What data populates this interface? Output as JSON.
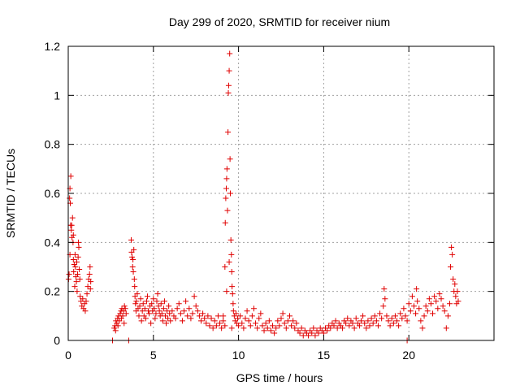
{
  "chart_data": {
    "type": "scatter",
    "title": "Day 299 of 2020, SRMTID for receiver nium",
    "xlabel": "GPS time / hours",
    "ylabel": "SRMTID / TECUs",
    "xlim": [
      0,
      25
    ],
    "ylim": [
      0,
      1.2
    ],
    "x_ticks": [
      0,
      5,
      10,
      15,
      20
    ],
    "x_tick_labels": [
      "0",
      "5",
      "10",
      "15",
      "20"
    ],
    "y_ticks": [
      0,
      0.2,
      0.4,
      0.6,
      0.8,
      1.0,
      1.2
    ],
    "y_tick_labels": [
      "0",
      "0.2",
      "0.4",
      "0.6",
      "0.8",
      "1",
      "1.2"
    ],
    "grid": true,
    "marker": "+",
    "colors": {
      "series": "#e00000",
      "grid": "#a0a0a0",
      "axis": "#000000"
    },
    "series": [
      {
        "name": "SRMTID",
        "points": [
          [
            0.05,
            0.27
          ],
          [
            0.08,
            0.58
          ],
          [
            0.1,
            0.62
          ],
          [
            0.12,
            0.56
          ],
          [
            0.15,
            0.67
          ],
          [
            0.18,
            0.45
          ],
          [
            0.2,
            0.47
          ],
          [
            0.22,
            0.42
          ],
          [
            0.25,
            0.5
          ],
          [
            0.28,
            0.4
          ],
          [
            0.3,
            0.33
          ],
          [
            0.32,
            0.28
          ],
          [
            0.35,
            0.31
          ],
          [
            0.38,
            0.22
          ],
          [
            0.4,
            0.35
          ],
          [
            0.42,
            0.3
          ],
          [
            0.45,
            0.26
          ],
          [
            0.48,
            0.24
          ],
          [
            0.5,
            0.32
          ],
          [
            0.52,
            0.2
          ],
          [
            0.55,
            0.27
          ],
          [
            0.58,
            0.34
          ],
          [
            0.6,
            0.4
          ],
          [
            0.62,
            0.38
          ],
          [
            0.65,
            0.29
          ],
          [
            0.68,
            0.25
          ],
          [
            0.7,
            0.18
          ],
          [
            0.75,
            0.16
          ],
          [
            0.8,
            0.14
          ],
          [
            0.85,
            0.17
          ],
          [
            0.9,
            0.13
          ],
          [
            0.95,
            0.15
          ],
          [
            1.0,
            0.12
          ],
          [
            1.05,
            0.16
          ],
          [
            1.1,
            0.19
          ],
          [
            1.15,
            0.22
          ],
          [
            1.2,
            0.25
          ],
          [
            1.25,
            0.27
          ],
          [
            1.3,
            0.21
          ],
          [
            1.32,
            0.24
          ],
          [
            1.28,
            0.3
          ],
          [
            0.02,
            0.25
          ],
          [
            0.1,
            0.35
          ],
          [
            0.14,
            0.47
          ],
          [
            0.3,
            0.43
          ],
          [
            2.6,
            0.0
          ],
          [
            3.55,
            0.0
          ],
          [
            19.9,
            0.0
          ],
          [
            2.7,
            0.05
          ],
          [
            2.75,
            0.06
          ],
          [
            2.8,
            0.08
          ],
          [
            2.85,
            0.07
          ],
          [
            2.9,
            0.09
          ],
          [
            2.95,
            0.1
          ],
          [
            3.0,
            0.08
          ],
          [
            3.05,
            0.11
          ],
          [
            3.1,
            0.12
          ],
          [
            3.15,
            0.13
          ],
          [
            3.2,
            0.1
          ],
          [
            3.25,
            0.12
          ],
          [
            3.3,
            0.14
          ],
          [
            3.35,
            0.13
          ],
          [
            3.4,
            0.11
          ],
          [
            2.78,
            0.04
          ],
          [
            2.92,
            0.06
          ],
          [
            3.12,
            0.09
          ],
          [
            3.28,
            0.07
          ],
          [
            3.7,
            0.41
          ],
          [
            3.72,
            0.36
          ],
          [
            3.75,
            0.34
          ],
          [
            3.78,
            0.3
          ],
          [
            3.8,
            0.33
          ],
          [
            3.82,
            0.28
          ],
          [
            3.85,
            0.37
          ],
          [
            3.88,
            0.25
          ],
          [
            3.9,
            0.22
          ],
          [
            3.92,
            0.18
          ],
          [
            3.95,
            0.15
          ],
          [
            3.98,
            0.12
          ],
          [
            4.0,
            0.16
          ],
          [
            4.05,
            0.19
          ],
          [
            4.1,
            0.13
          ],
          [
            4.15,
            0.1
          ],
          [
            4.2,
            0.14
          ],
          [
            4.25,
            0.17
          ],
          [
            4.3,
            0.08
          ],
          [
            4.35,
            0.12
          ],
          [
            4.4,
            0.15
          ],
          [
            4.45,
            0.1
          ],
          [
            4.5,
            0.13
          ],
          [
            4.55,
            0.09
          ],
          [
            4.6,
            0.16
          ],
          [
            4.65,
            0.18
          ],
          [
            4.7,
            0.12
          ],
          [
            4.75,
            0.11
          ],
          [
            4.8,
            0.14
          ],
          [
            4.85,
            0.07
          ],
          [
            4.9,
            0.15
          ],
          [
            4.95,
            0.12
          ],
          [
            5.0,
            0.17
          ],
          [
            5.05,
            0.13
          ],
          [
            5.1,
            0.09
          ],
          [
            5.15,
            0.11
          ],
          [
            5.2,
            0.16
          ],
          [
            5.25,
            0.19
          ],
          [
            5.3,
            0.14
          ],
          [
            5.35,
            0.12
          ],
          [
            5.4,
            0.1
          ],
          [
            5.45,
            0.15
          ],
          [
            5.5,
            0.11
          ],
          [
            5.55,
            0.08
          ],
          [
            5.6,
            0.13
          ],
          [
            5.65,
            0.16
          ],
          [
            5.7,
            0.1
          ],
          [
            5.75,
            0.07
          ],
          [
            5.8,
            0.12
          ],
          [
            5.85,
            0.09
          ],
          [
            5.9,
            0.14
          ],
          [
            5.95,
            0.11
          ],
          [
            6.0,
            0.08
          ],
          [
            6.1,
            0.12
          ],
          [
            6.2,
            0.1
          ],
          [
            6.3,
            0.09
          ],
          [
            6.4,
            0.13
          ],
          [
            6.5,
            0.15
          ],
          [
            6.6,
            0.11
          ],
          [
            6.7,
            0.08
          ],
          [
            6.8,
            0.12
          ],
          [
            6.9,
            0.16
          ],
          [
            7.0,
            0.1
          ],
          [
            7.1,
            0.13
          ],
          [
            7.2,
            0.09
          ],
          [
            7.3,
            0.11
          ],
          [
            7.4,
            0.18
          ],
          [
            7.5,
            0.14
          ],
          [
            7.6,
            0.12
          ],
          [
            7.7,
            0.1
          ],
          [
            7.8,
            0.08
          ],
          [
            7.9,
            0.11
          ],
          [
            8.0,
            0.09
          ],
          [
            8.1,
            0.07
          ],
          [
            8.2,
            0.1
          ],
          [
            8.3,
            0.06
          ],
          [
            8.4,
            0.09
          ],
          [
            8.5,
            0.05
          ],
          [
            8.6,
            0.08
          ],
          [
            8.7,
            0.06
          ],
          [
            8.8,
            0.1
          ],
          [
            8.9,
            0.07
          ],
          [
            9.0,
            0.05
          ],
          [
            9.1,
            0.08
          ],
          [
            9.2,
            0.06
          ],
          [
            9.2,
            0.3
          ],
          [
            9.22,
            0.48
          ],
          [
            9.25,
            0.58
          ],
          [
            9.28,
            0.62
          ],
          [
            9.3,
            0.66
          ],
          [
            9.32,
            0.7
          ],
          [
            9.35,
            0.53
          ],
          [
            9.38,
            0.85
          ],
          [
            9.4,
            1.01
          ],
          [
            9.42,
            1.04
          ],
          [
            9.45,
            1.1
          ],
          [
            9.48,
            1.17
          ],
          [
            9.5,
            0.74
          ],
          [
            9.52,
            0.6
          ],
          [
            9.55,
            0.41
          ],
          [
            9.58,
            0.35
          ],
          [
            9.6,
            0.28
          ],
          [
            9.62,
            0.22
          ],
          [
            9.65,
            0.19
          ],
          [
            9.68,
            0.15
          ],
          [
            9.7,
            0.12
          ],
          [
            9.75,
            0.1
          ],
          [
            9.8,
            0.08
          ],
          [
            9.85,
            0.11
          ],
          [
            9.9,
            0.07
          ],
          [
            9.95,
            0.09
          ],
          [
            10.0,
            0.06
          ],
          [
            10.1,
            0.1
          ],
          [
            10.2,
            0.07
          ],
          [
            10.3,
            0.05
          ],
          [
            10.4,
            0.09
          ],
          [
            10.5,
            0.12
          ],
          [
            10.6,
            0.08
          ],
          [
            10.7,
            0.06
          ],
          [
            10.8,
            0.1
          ],
          [
            10.9,
            0.13
          ],
          [
            11.0,
            0.07
          ],
          [
            11.1,
            0.05
          ],
          [
            11.2,
            0.09
          ],
          [
            11.3,
            0.11
          ],
          [
            11.4,
            0.06
          ],
          [
            11.5,
            0.04
          ],
          [
            11.6,
            0.07
          ],
          [
            11.7,
            0.05
          ],
          [
            11.8,
            0.08
          ],
          [
            11.9,
            0.04
          ],
          [
            12.0,
            0.06
          ],
          [
            12.1,
            0.03
          ],
          [
            12.2,
            0.05
          ],
          [
            12.3,
            0.08
          ],
          [
            12.4,
            0.06
          ],
          [
            12.5,
            0.09
          ],
          [
            12.6,
            0.11
          ],
          [
            12.7,
            0.07
          ],
          [
            12.8,
            0.05
          ],
          [
            12.9,
            0.08
          ],
          [
            13.0,
            0.1
          ],
          [
            13.1,
            0.06
          ],
          [
            13.2,
            0.08
          ],
          [
            13.3,
            0.05
          ],
          [
            13.4,
            0.07
          ],
          [
            13.5,
            0.04
          ],
          [
            13.6,
            0.03
          ],
          [
            13.7,
            0.05
          ],
          [
            13.8,
            0.02
          ],
          [
            13.9,
            0.04
          ],
          [
            14.0,
            0.03
          ],
          [
            14.1,
            0.02
          ],
          [
            14.2,
            0.04
          ],
          [
            14.3,
            0.03
          ],
          [
            14.4,
            0.05
          ],
          [
            14.5,
            0.02
          ],
          [
            14.6,
            0.04
          ],
          [
            14.7,
            0.03
          ],
          [
            14.8,
            0.05
          ],
          [
            14.9,
            0.04
          ],
          [
            15.0,
            0.03
          ],
          [
            15.1,
            0.05
          ],
          [
            15.2,
            0.04
          ],
          [
            15.3,
            0.06
          ],
          [
            15.4,
            0.05
          ],
          [
            15.5,
            0.07
          ],
          [
            15.6,
            0.06
          ],
          [
            15.7,
            0.08
          ],
          [
            15.8,
            0.05
          ],
          [
            15.9,
            0.07
          ],
          [
            16.0,
            0.06
          ],
          [
            16.1,
            0.05
          ],
          [
            16.2,
            0.08
          ],
          [
            16.3,
            0.07
          ],
          [
            16.4,
            0.09
          ],
          [
            16.5,
            0.06
          ],
          [
            16.6,
            0.08
          ],
          [
            16.7,
            0.07
          ],
          [
            16.8,
            0.05
          ],
          [
            16.9,
            0.09
          ],
          [
            17.0,
            0.07
          ],
          [
            17.1,
            0.06
          ],
          [
            17.2,
            0.08
          ],
          [
            17.3,
            0.1
          ],
          [
            17.4,
            0.07
          ],
          [
            17.5,
            0.05
          ],
          [
            17.6,
            0.08
          ],
          [
            17.7,
            0.06
          ],
          [
            17.8,
            0.09
          ],
          [
            17.9,
            0.07
          ],
          [
            18.0,
            0.1
          ],
          [
            18.1,
            0.08
          ],
          [
            18.2,
            0.06
          ],
          [
            18.3,
            0.11
          ],
          [
            18.4,
            0.09
          ],
          [
            18.5,
            0.14
          ],
          [
            18.55,
            0.21
          ],
          [
            18.6,
            0.17
          ],
          [
            18.7,
            0.1
          ],
          [
            18.8,
            0.08
          ],
          [
            18.9,
            0.06
          ],
          [
            19.0,
            0.09
          ],
          [
            19.1,
            0.07
          ],
          [
            19.2,
            0.1
          ],
          [
            19.3,
            0.08
          ],
          [
            19.4,
            0.06
          ],
          [
            19.5,
            0.11
          ],
          [
            19.6,
            0.09
          ],
          [
            19.7,
            0.13
          ],
          [
            19.8,
            0.1
          ],
          [
            19.9,
            0.08
          ],
          [
            20.0,
            0.15
          ],
          [
            20.1,
            0.12
          ],
          [
            20.2,
            0.18
          ],
          [
            20.3,
            0.14
          ],
          [
            20.4,
            0.11
          ],
          [
            20.45,
            0.21
          ],
          [
            20.5,
            0.16
          ],
          [
            20.6,
            0.13
          ],
          [
            20.7,
            0.08
          ],
          [
            20.8,
            0.05
          ],
          [
            20.9,
            0.1
          ],
          [
            21.0,
            0.14
          ],
          [
            21.1,
            0.12
          ],
          [
            21.2,
            0.17
          ],
          [
            21.3,
            0.15
          ],
          [
            21.4,
            0.11
          ],
          [
            21.5,
            0.18
          ],
          [
            21.6,
            0.16
          ],
          [
            21.7,
            0.13
          ],
          [
            21.8,
            0.19
          ],
          [
            21.9,
            0.17
          ],
          [
            22.0,
            0.14
          ],
          [
            22.1,
            0.12
          ],
          [
            22.2,
            0.05
          ],
          [
            22.3,
            0.1
          ],
          [
            22.4,
            0.15
          ],
          [
            22.45,
            0.3
          ],
          [
            22.5,
            0.38
          ],
          [
            22.55,
            0.35
          ],
          [
            22.6,
            0.25
          ],
          [
            22.65,
            0.2
          ],
          [
            22.7,
            0.23
          ],
          [
            22.75,
            0.18
          ],
          [
            22.8,
            0.15
          ],
          [
            22.85,
            0.2
          ],
          [
            22.9,
            0.16
          ],
          [
            9.1,
            0.1
          ],
          [
            9.3,
            0.2
          ],
          [
            9.45,
            0.32
          ],
          [
            9.6,
            0.05
          ]
        ]
      }
    ]
  }
}
